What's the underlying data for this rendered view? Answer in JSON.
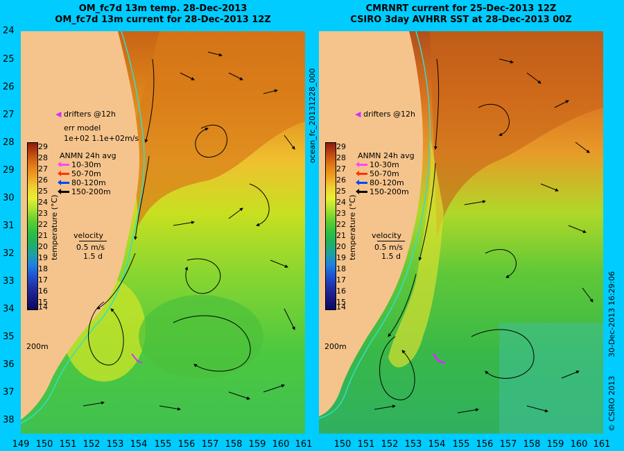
{
  "left_panel": {
    "title_line1": "OM_fc7d 13m temp. 28-Dec-2013",
    "title_line2": "OM_fc7d 13m current for 28-Dec-2013 12Z",
    "drifters_label": "drifters @12h",
    "err_model_label": "err model",
    "err_model_value": "1e+02 1.1e+02m/s",
    "anmn_title": "ANMN 24h avg",
    "anmn_depths": [
      "10-30m",
      "50-70m",
      "80-120m",
      "150-200m"
    ],
    "velocity_label": "velocity",
    "velocity_scale": "0.5 m/s",
    "velocity_days": "1.5 d",
    "depth_contour_label": "200m"
  },
  "right_panel": {
    "title_line1": "CMRNRT current for 25-Dec-2013 12Z",
    "title_line2": "CSIRO 3day AVHRR SST at 28-Dec-2013 00Z",
    "drifters_label": "drifters @12h",
    "anmn_title": "ANMN 24h avg",
    "anmn_depths": [
      "10-30m",
      "50-70m",
      "80-120m",
      "150-200m"
    ],
    "velocity_label": "velocity",
    "velocity_scale": "0.5 m/s",
    "velocity_days": "1.5 d",
    "depth_contour_label": "200m"
  },
  "anmn_colors": [
    "#ff44ff",
    "#ff3300",
    "#0044ff",
    "#000000"
  ],
  "colorbar": {
    "label": "temperature (°C)",
    "ticks": [
      "29",
      "28",
      "27",
      "26",
      "25",
      "24",
      "23",
      "22",
      "21",
      "20",
      "19",
      "18",
      "17",
      "16",
      "15",
      "14"
    ]
  },
  "y_axis_labels": [
    "24",
    "25",
    "26",
    "27",
    "28",
    "29",
    "30",
    "31",
    "32",
    "33",
    "34",
    "35",
    "36",
    "37",
    "38"
  ],
  "x_axis_labels_left": [
    "149",
    "150",
    "151",
    "152",
    "153",
    "154",
    "155",
    "156",
    "157",
    "158",
    "159",
    "160",
    "161"
  ],
  "x_axis_labels_right": [
    "150",
    "151",
    "152",
    "153",
    "154",
    "155",
    "156",
    "157",
    "158",
    "159",
    "160",
    "161"
  ],
  "run_label": "ocean_fc_20131228_000",
  "footer_date": "30-Dec-2013 16:29:06",
  "footer_copyright": "© CSIRO 2013",
  "colors": {
    "land": "#f5c48c",
    "shelf": "#33ddcc",
    "background": "#00ccff"
  }
}
